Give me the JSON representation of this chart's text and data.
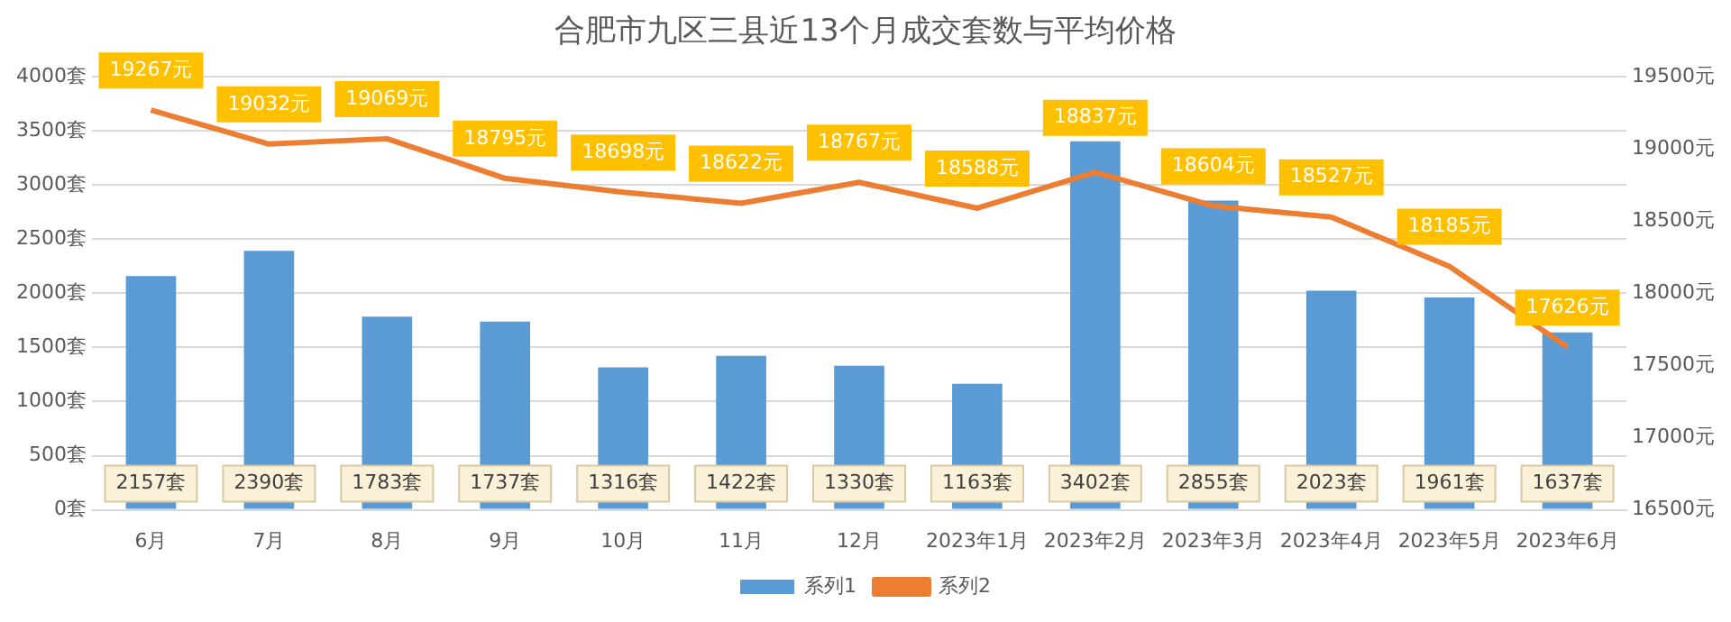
{
  "chart_data": {
    "type": "bar",
    "title": "合肥市九区三县近13个月成交套数与平均价格",
    "categories": [
      "6月",
      "7月",
      "8月",
      "9月",
      "10月",
      "11月",
      "12月",
      "2023年1月",
      "2023年2月",
      "2023年3月",
      "2023年4月",
      "2023年5月",
      "2023年6月"
    ],
    "series": [
      {
        "name": "系列1",
        "color": "#5b9bd5",
        "values": [
          2157,
          2390,
          1783,
          1737,
          1316,
          1422,
          1330,
          1163,
          3402,
          2855,
          2023,
          1961,
          1637
        ],
        "value_labels": [
          "2157套",
          "2390套",
          "1783套",
          "1737套",
          "1316套",
          "1422套",
          "1330套",
          "1163套",
          "3402套",
          "2855套",
          "2023套",
          "1961套",
          "1637套"
        ]
      },
      {
        "name": "系列2",
        "type": "line",
        "axis": "y2",
        "color": "#ed7d31",
        "values": [
          19267,
          19032,
          19069,
          18795,
          18698,
          18622,
          18767,
          18588,
          18837,
          18604,
          18527,
          18185,
          17626
        ],
        "value_labels": [
          "19267元",
          "19032元",
          "19069元",
          "18795元",
          "18698元",
          "18622元",
          "18767元",
          "18588元",
          "18837元",
          "18604元",
          "18527元",
          "18185元",
          "17626元"
        ]
      }
    ],
    "ylim": [
      0,
      4000
    ],
    "yticks": [
      {
        "value": 0,
        "label": "0套"
      },
      {
        "value": 500,
        "label": "500套"
      },
      {
        "value": 1000,
        "label": "1000套"
      },
      {
        "value": 1500,
        "label": "1500套"
      },
      {
        "value": 2000,
        "label": "2000套"
      },
      {
        "value": 2500,
        "label": "2500套"
      },
      {
        "value": 3000,
        "label": "3000套"
      },
      {
        "value": 3500,
        "label": "3500套"
      },
      {
        "value": 4000,
        "label": "4000套"
      }
    ],
    "y2lim": [
      16500,
      19500
    ],
    "y2ticks": [
      {
        "value": 16500,
        "label": "16500元"
      },
      {
        "value": 17000,
        "label": "17000元"
      },
      {
        "value": 17500,
        "label": "17500元"
      },
      {
        "value": 18000,
        "label": "18000元"
      },
      {
        "value": 18500,
        "label": "18500元"
      },
      {
        "value": 19000,
        "label": "19000元"
      },
      {
        "value": 19500,
        "label": "19500元"
      }
    ],
    "grid": "y",
    "legend": "bottom",
    "marker": "none",
    "line_style": "solid"
  }
}
